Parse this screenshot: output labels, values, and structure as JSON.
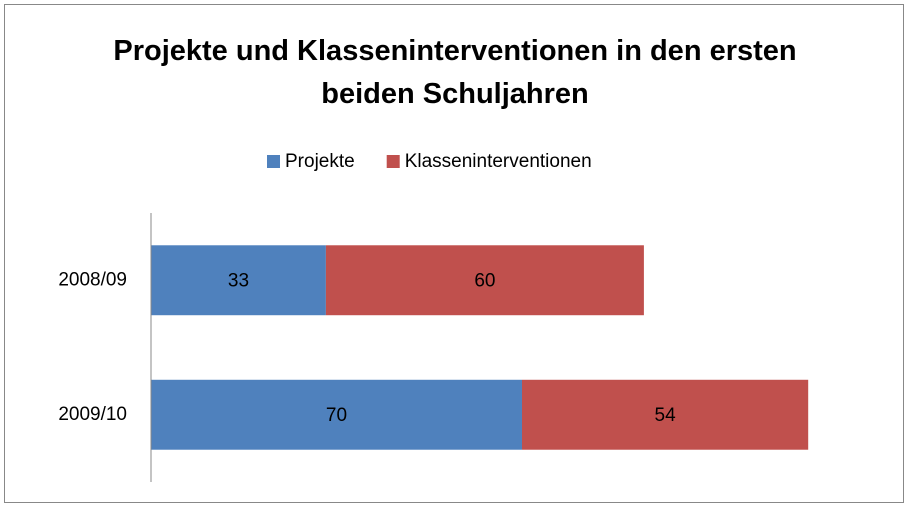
{
  "chart_data": {
    "type": "stacked-barh",
    "title": "Projekte und Klasseninterventionen in den ersten beiden Schuljahren",
    "categories": [
      "2008/09",
      "2009/10"
    ],
    "series": [
      {
        "name": "Projekte",
        "color": "#4f81bd",
        "values": [
          33,
          70
        ]
      },
      {
        "name": "Klasseninterventionen",
        "color": "#c0504d",
        "values": [
          60,
          54
        ]
      }
    ],
    "xlim": [
      0,
      140
    ],
    "legend": "top"
  }
}
